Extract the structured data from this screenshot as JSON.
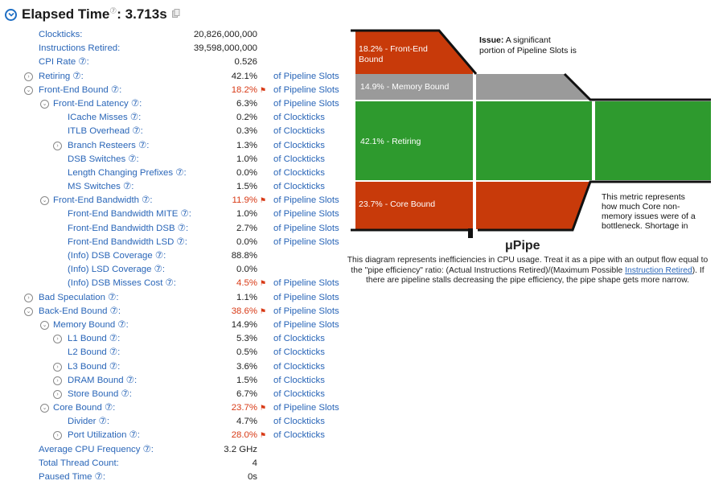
{
  "header": {
    "title": "Elapsed Time",
    "help_mark": "⑦",
    "value": ": 3.713s"
  },
  "rows": [
    {
      "indent": 0,
      "toggle": "none",
      "label": "Clockticks:",
      "value": "20,826,000,000",
      "unit": "",
      "flag": false,
      "red": false
    },
    {
      "indent": 0,
      "toggle": "none",
      "label": "Instructions Retired:",
      "value": "39,598,000,000",
      "unit": "",
      "flag": false,
      "red": false
    },
    {
      "indent": 0,
      "toggle": "none",
      "label": "CPI Rate ⑦:",
      "value": "0.526",
      "unit": "",
      "flag": false,
      "red": false
    },
    {
      "indent": 0,
      "toggle": "expand",
      "label": "Retiring ⑦:",
      "value": "42.1%",
      "unit": "of Pipeline Slots",
      "flag": false,
      "red": false
    },
    {
      "indent": 0,
      "toggle": "collapse",
      "label": "Front-End Bound ⑦:",
      "value": "18.2%",
      "unit": "of Pipeline Slots",
      "flag": true,
      "red": true
    },
    {
      "indent": 1,
      "toggle": "collapse",
      "label": "Front-End Latency ⑦:",
      "value": "6.3%",
      "unit": "of Pipeline Slots",
      "flag": false,
      "red": false
    },
    {
      "indent": 2,
      "toggle": "none",
      "label": "ICache Misses ⑦:",
      "value": "0.2%",
      "unit": "of Clockticks",
      "flag": false,
      "red": false
    },
    {
      "indent": 2,
      "toggle": "none",
      "label": "ITLB Overhead ⑦:",
      "value": "0.3%",
      "unit": "of Clockticks",
      "flag": false,
      "red": false
    },
    {
      "indent": 2,
      "toggle": "expand",
      "label": "Branch Resteers ⑦:",
      "value": "1.3%",
      "unit": "of Clockticks",
      "flag": false,
      "red": false
    },
    {
      "indent": 2,
      "toggle": "none",
      "label": "DSB Switches ⑦:",
      "value": "1.0%",
      "unit": "of Clockticks",
      "flag": false,
      "red": false
    },
    {
      "indent": 2,
      "toggle": "none",
      "label": "Length Changing Prefixes ⑦:",
      "value": "0.0%",
      "unit": "of Clockticks",
      "flag": false,
      "red": false
    },
    {
      "indent": 2,
      "toggle": "none",
      "label": "MS Switches ⑦:",
      "value": "1.5%",
      "unit": "of Clockticks",
      "flag": false,
      "red": false
    },
    {
      "indent": 1,
      "toggle": "collapse",
      "label": "Front-End Bandwidth ⑦:",
      "value": "11.9%",
      "unit": "of Pipeline Slots",
      "flag": true,
      "red": true
    },
    {
      "indent": 2,
      "toggle": "none",
      "label": "Front-End Bandwidth MITE ⑦:",
      "value": "1.0%",
      "unit": "of Pipeline Slots",
      "flag": false,
      "red": false
    },
    {
      "indent": 2,
      "toggle": "none",
      "label": "Front-End Bandwidth DSB ⑦:",
      "value": "2.7%",
      "unit": "of Pipeline Slots",
      "flag": false,
      "red": false
    },
    {
      "indent": 2,
      "toggle": "none",
      "label": "Front-End Bandwidth LSD ⑦:",
      "value": "0.0%",
      "unit": "of Pipeline Slots",
      "flag": false,
      "red": false
    },
    {
      "indent": 2,
      "toggle": "none",
      "label": "(Info) DSB Coverage ⑦:",
      "value": "88.8%",
      "unit": "",
      "flag": false,
      "red": false
    },
    {
      "indent": 2,
      "toggle": "none",
      "label": "(Info) LSD Coverage ⑦:",
      "value": "0.0%",
      "unit": "",
      "flag": false,
      "red": false
    },
    {
      "indent": 2,
      "toggle": "none",
      "label": "(Info) DSB Misses Cost ⑦:",
      "value": "4.5%",
      "unit": "of Pipeline Slots",
      "flag": true,
      "red": true
    },
    {
      "indent": 0,
      "toggle": "expand",
      "label": "Bad Speculation ⑦:",
      "value": "1.1%",
      "unit": "of Pipeline Slots",
      "flag": false,
      "red": false
    },
    {
      "indent": 0,
      "toggle": "collapse",
      "label": "Back-End Bound ⑦:",
      "value": "38.6%",
      "unit": "of Pipeline Slots",
      "flag": true,
      "red": true
    },
    {
      "indent": 1,
      "toggle": "collapse",
      "label": "Memory Bound ⑦:",
      "value": "14.9%",
      "unit": "of Pipeline Slots",
      "flag": false,
      "red": false
    },
    {
      "indent": 2,
      "toggle": "expand",
      "label": "L1 Bound ⑦:",
      "value": "5.3%",
      "unit": "of Clockticks",
      "flag": false,
      "red": false
    },
    {
      "indent": 2,
      "toggle": "none",
      "label": "L2 Bound ⑦:",
      "value": "0.5%",
      "unit": "of Clockticks",
      "flag": false,
      "red": false
    },
    {
      "indent": 2,
      "toggle": "expand",
      "label": "L3 Bound ⑦:",
      "value": "3.6%",
      "unit": "of Clockticks",
      "flag": false,
      "red": false
    },
    {
      "indent": 2,
      "toggle": "expand",
      "label": "DRAM Bound ⑦:",
      "value": "1.5%",
      "unit": "of Clockticks",
      "flag": false,
      "red": false
    },
    {
      "indent": 2,
      "toggle": "expand",
      "label": "Store Bound ⑦:",
      "value": "6.7%",
      "unit": "of Clockticks",
      "flag": false,
      "red": false
    },
    {
      "indent": 1,
      "toggle": "collapse",
      "label": "Core Bound ⑦:",
      "value": "23.7%",
      "unit": "of Pipeline Slots",
      "flag": true,
      "red": true
    },
    {
      "indent": 2,
      "toggle": "none",
      "label": "Divider ⑦:",
      "value": "4.7%",
      "unit": "of Clockticks",
      "flag": false,
      "red": false
    },
    {
      "indent": 2,
      "toggle": "expand",
      "label": "Port Utilization ⑦:",
      "value": "28.0%",
      "unit": "of Clockticks",
      "flag": true,
      "red": true
    },
    {
      "indent": 0,
      "toggle": "none",
      "label": "Average CPU Frequency ⑦:",
      "value": "3.2 GHz",
      "unit": "",
      "flag": false,
      "red": false
    },
    {
      "indent": 0,
      "toggle": "none",
      "label": "Total Thread Count:",
      "value": "4",
      "unit": "",
      "flag": false,
      "red": false
    },
    {
      "indent": 0,
      "toggle": "none",
      "label": "Paused Time ⑦:",
      "value": "0s",
      "unit": "",
      "flag": false,
      "red": false
    }
  ],
  "diagram": {
    "segments": [
      {
        "label": "18.2% - Front-End Bound",
        "color": "#c83a0a"
      },
      {
        "label": "14.9% - Memory Bound",
        "color": "#9a9a9a"
      },
      {
        "label": "42.1% - Retiring",
        "color": "#2e9a2e"
      },
      {
        "label": "23.7% - Core Bound",
        "color": "#c83a0a"
      }
    ],
    "issue_bold": "Issue:",
    "issue_text_1": "A significant",
    "issue_text_2": "portion of Pipeline Slots is",
    "note_lines": [
      "This metric represents",
      "how much Core non-",
      "memory issues were of a",
      "bottleneck. Shortage in"
    ]
  },
  "upipe": {
    "title": "μPipe",
    "desc_before": "This diagram represents inefficiencies in CPU usage. Treat it as a pipe with an output flow equal to the \"pipe efficiency\" ratio: (Actual Instructions Retired)/(Maximum Possible ",
    "desc_link": "Instruction Retired",
    "desc_after": "). If there are pipeline stalls decreasing the pipe efficiency, the pipe shape gets more narrow."
  }
}
